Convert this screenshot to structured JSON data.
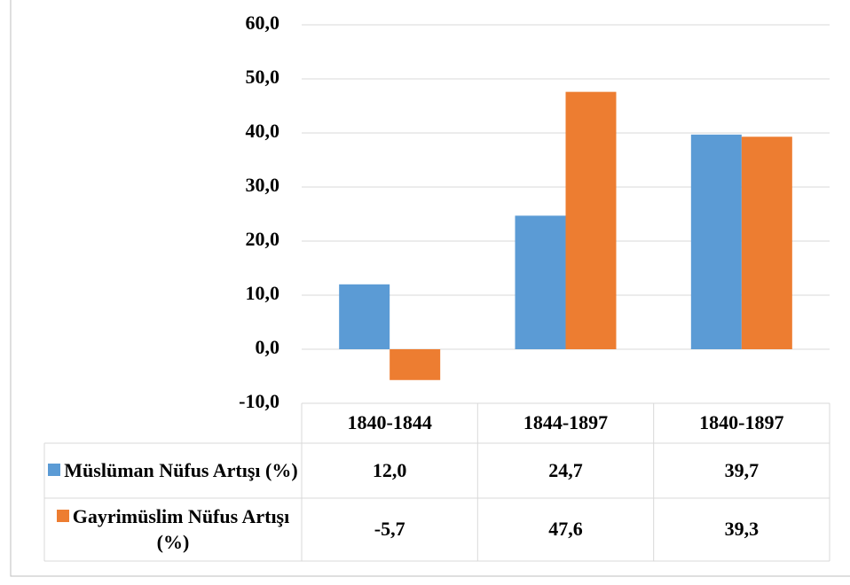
{
  "chart_data": {
    "type": "bar",
    "categories": [
      "1840-1844",
      "1844-1897",
      "1840-1897"
    ],
    "series": [
      {
        "name": "Müslüman Nüfus Artışı (%)",
        "color": "#5b9bd5",
        "values": [
          12.0,
          24.7,
          39.7
        ],
        "value_labels": [
          "12,0",
          "24,7",
          "39,7"
        ]
      },
      {
        "name": "Gayrimüslim Nüfus Artışı (%)",
        "color": "#ed7d31",
        "values": [
          -5.7,
          47.6,
          39.3
        ],
        "value_labels": [
          "-5,7",
          "47,6",
          "39,3"
        ]
      }
    ],
    "ylim": [
      -10,
      60
    ],
    "yticks": [
      {
        "value": -10,
        "label": "-10,0"
      },
      {
        "value": 0,
        "label": "0,0"
      },
      {
        "value": 10,
        "label": "10,0"
      },
      {
        "value": 20,
        "label": "20,0"
      },
      {
        "value": 30,
        "label": "30,0"
      },
      {
        "value": 40,
        "label": "40,0"
      },
      {
        "value": 50,
        "label": "50,0"
      },
      {
        "value": 60,
        "label": "60,0"
      }
    ],
    "grid": true
  }
}
